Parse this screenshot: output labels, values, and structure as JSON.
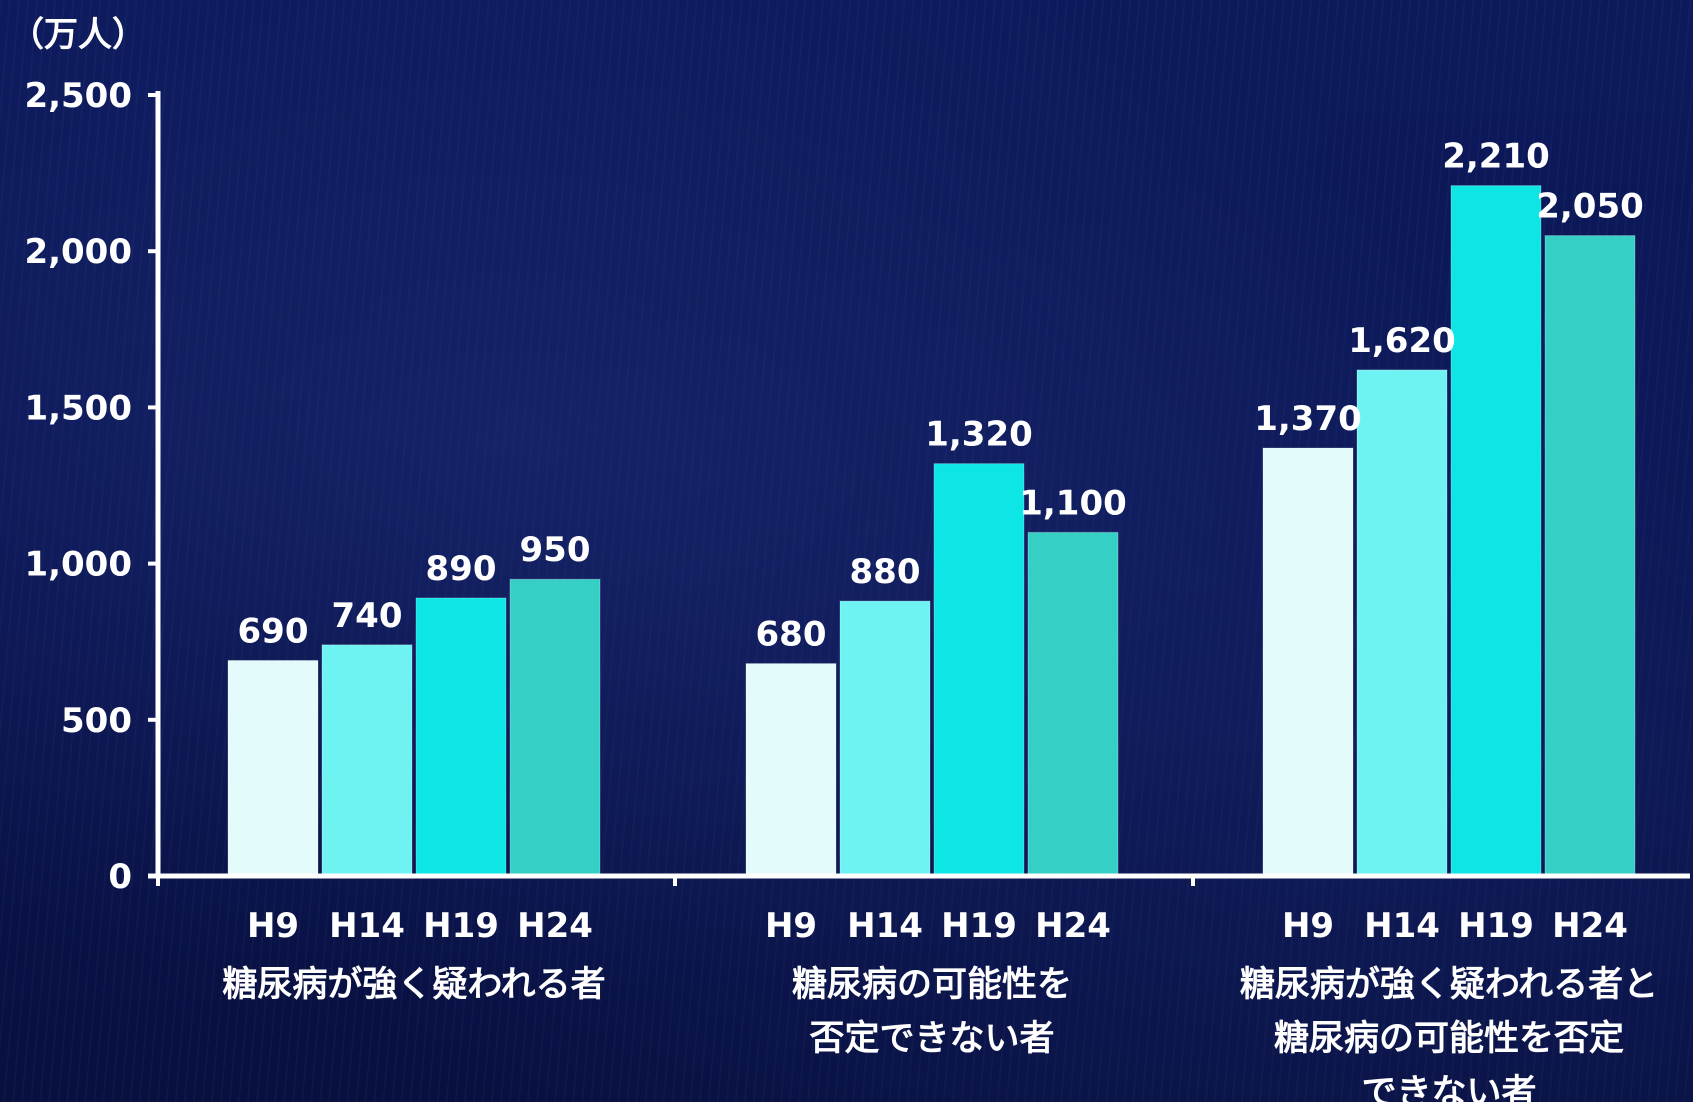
{
  "chart_data": {
    "type": "bar",
    "title": "",
    "ylabel": "（万人）",
    "xlabel": "",
    "ylim": [
      0,
      2500
    ],
    "y_ticks": [
      {
        "value": 0,
        "label": "0"
      },
      {
        "value": 500,
        "label": "500"
      },
      {
        "value": 1000,
        "label": "1,000"
      },
      {
        "value": 1500,
        "label": "1,500"
      },
      {
        "value": 2000,
        "label": "2,000"
      },
      {
        "value": 2500,
        "label": "2,500"
      }
    ],
    "grid": false,
    "legend": "none",
    "categories": [
      "H9",
      "H14",
      "H19",
      "H24"
    ],
    "groups": [
      {
        "label_lines": [
          "糖尿病が強く疑われる者"
        ],
        "values": [
          690,
          740,
          890,
          950
        ],
        "value_labels": [
          "690",
          "740",
          "890",
          "950"
        ]
      },
      {
        "label_lines": [
          "糖尿病の可能性を",
          "否定できない者"
        ],
        "values": [
          680,
          880,
          1320,
          1100
        ],
        "value_labels": [
          "680",
          "880",
          "1,320",
          "1,100"
        ]
      },
      {
        "label_lines": [
          "糖尿病が強く疑われる者と",
          "糖尿病の可能性を否定",
          "できない者"
        ],
        "values": [
          1370,
          1620,
          2210,
          2050
        ],
        "value_labels": [
          "1,370",
          "1,620",
          "2,210",
          "2,050"
        ]
      }
    ],
    "colors": {
      "H9": "#e4fbfb",
      "H14": "#6ff2f2",
      "H19": "#0ee6e6",
      "H24": "#35cfc6",
      "axis": "#ffffff",
      "text": "#ffffff",
      "background": "#0a1450"
    }
  }
}
